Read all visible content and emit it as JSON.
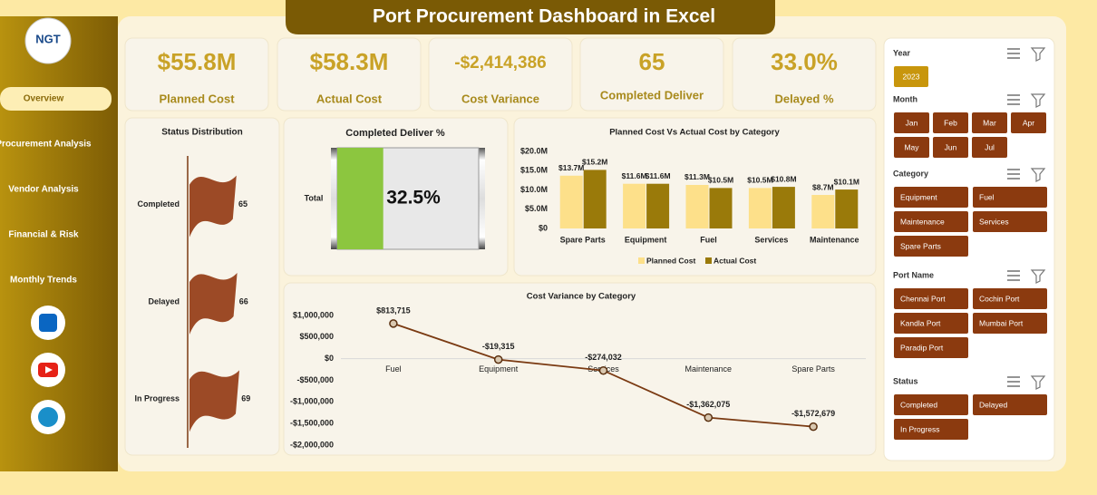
{
  "header": {
    "title": "Port Procurement Dashboard in Excel",
    "logo": "NGT"
  },
  "nav": [
    "Overview",
    "Procurement Analysis",
    "Vendor Analysis",
    "Financial & Risk",
    "Monthly Trends"
  ],
  "kpis": [
    {
      "value": "$55.8M",
      "label": "Planned Cost"
    },
    {
      "value": "$58.3M",
      "label": "Actual Cost"
    },
    {
      "value": "-$2,414,386",
      "label": "Cost Variance"
    },
    {
      "value": "65",
      "label": "Completed Deliver"
    },
    {
      "value": "33.0%",
      "label": "Delayed %"
    }
  ],
  "slicers": [
    {
      "title": "Year",
      "items": [
        "2023"
      ]
    },
    {
      "title": "Month",
      "items": [
        "Jan",
        "Feb",
        "Mar",
        "Apr",
        "May",
        "Jun",
        "Jul"
      ]
    },
    {
      "title": "Category",
      "items": [
        "Equipment",
        "Fuel",
        "Maintenance",
        "Services",
        "Spare Parts"
      ]
    },
    {
      "title": "Port Name",
      "items": [
        "Chennai Port",
        "Cochin Port",
        "Kandla Port",
        "Mumbai Port",
        "Paradip Port"
      ]
    },
    {
      "title": "Status",
      "items": [
        "Completed",
        "Delayed",
        "In Progress"
      ]
    }
  ],
  "chart_data": [
    {
      "type": "pictograph",
      "title": "Status Distribution",
      "categories": [
        "Completed",
        "Delayed",
        "In Progress"
      ],
      "values": [
        65,
        66,
        69
      ],
      "color": "#9c4a26"
    },
    {
      "type": "gauge",
      "title": "Completed Deliver %",
      "categories": [
        "Total"
      ],
      "values": [
        32.5
      ],
      "value_labels": [
        "32.5%"
      ],
      "color": "#8cc63f"
    },
    {
      "type": "bar",
      "title": "Planned Cost Vs Actual Cost by Category",
      "categories": [
        "Spare Parts",
        "Equipment",
        "Fuel",
        "Services",
        "Maintenance"
      ],
      "series": [
        {
          "name": "Planned Cost",
          "color": "#fde08a",
          "values": [
            13.7,
            11.6,
            11.3,
            10.5,
            8.7
          ],
          "value_labels": [
            "$13.7M",
            "$11.6M",
            "$11.3M",
            "$10.5M",
            "$8.7M"
          ]
        },
        {
          "name": "Actual Cost",
          "color": "#9a7a0a",
          "values": [
            15.2,
            11.6,
            10.5,
            10.8,
            10.1
          ],
          "value_labels": [
            "$15.2M",
            "$11.6M",
            "$10.5M",
            "$10.8M",
            "$10.1M"
          ]
        }
      ],
      "ylim": [
        0,
        20
      ],
      "yticks": [
        {
          "value": 0,
          "label": "$0"
        },
        {
          "value": 5,
          "label": "$5.0M"
        },
        {
          "value": 10,
          "label": "$10.0M"
        },
        {
          "value": 15,
          "label": "$15.0M"
        },
        {
          "value": 20,
          "label": "$20.0M"
        }
      ],
      "legend": "bottom"
    },
    {
      "type": "line",
      "title": "Cost Variance by Category",
      "categories": [
        "Fuel",
        "Equipment",
        "Services",
        "Maintenance",
        "Spare Parts"
      ],
      "values": [
        813715,
        -19315,
        -274032,
        -1362075,
        -1572679
      ],
      "value_labels": [
        "$813,715",
        "-$19,315",
        "-$274,032",
        "-$1,362,075",
        "-$1,572,679"
      ],
      "color": "#7a3a12",
      "ylim": [
        -2000000,
        1000000
      ],
      "yticks": [
        {
          "value": -2000000,
          "label": "-$2,000,000"
        },
        {
          "value": -1500000,
          "label": "-$1,500,000"
        },
        {
          "value": -1000000,
          "label": "-$1,000,000"
        },
        {
          "value": -500000,
          "label": "-$500,000"
        },
        {
          "value": 0,
          "label": "$0"
        },
        {
          "value": 500000,
          "label": "$500,000"
        },
        {
          "value": 1000000,
          "label": "$1,000,000"
        }
      ]
    }
  ]
}
